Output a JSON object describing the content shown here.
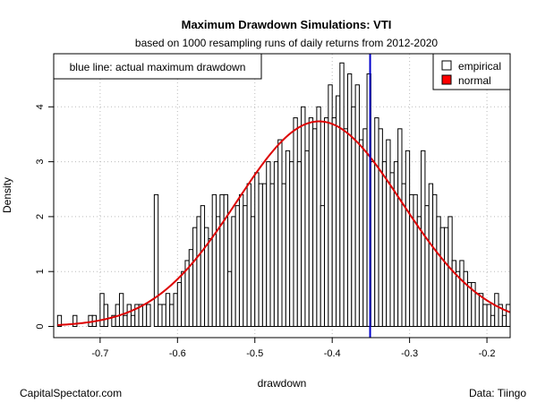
{
  "chart_data": {
    "type": "histogram",
    "title": "Maximum Drawdown Simulations: VTI",
    "subtitle": "based on 1000 resampling runs of daily returns from 2012-2020",
    "xlabel": "drawdown",
    "ylabel": "Density",
    "xlim": [
      -0.76,
      -0.17
    ],
    "ylim": [
      0,
      4.9
    ],
    "x_ticks": [
      -0.7,
      -0.6,
      -0.5,
      -0.4,
      -0.3,
      -0.2
    ],
    "y_ticks": [
      0,
      1,
      2,
      3,
      4
    ],
    "grid": true,
    "bin_width": 0.005,
    "bin_start": -0.755,
    "densities": [
      0.2,
      0.0,
      0.0,
      0.0,
      0.2,
      0.0,
      0.0,
      0.0,
      0.2,
      0.2,
      0.0,
      0.6,
      0.4,
      0.0,
      0.2,
      0.4,
      0.6,
      0.2,
      0.4,
      0.2,
      0.4,
      0.4,
      0.4,
      0.4,
      0.0,
      2.4,
      0.4,
      0.4,
      0.6,
      0.4,
      0.6,
      0.8,
      1.0,
      1.2,
      1.4,
      1.8,
      2.0,
      2.2,
      1.8,
      1.6,
      2.4,
      2.0,
      2.4,
      2.4,
      1.0,
      2.0,
      2.2,
      2.4,
      2.2,
      2.6,
      2.0,
      2.8,
      2.6,
      2.6,
      3.0,
      2.6,
      3.0,
      3.4,
      2.6,
      3.2,
      3.0,
      3.8,
      3.0,
      4.0,
      3.2,
      3.8,
      3.6,
      4.0,
      2.2,
      3.8,
      4.4,
      3.8,
      4.2,
      4.8,
      3.6,
      4.6,
      4.0,
      4.4,
      3.4,
      3.6,
      4.6,
      3.0,
      3.8,
      3.6,
      3.0,
      3.4,
      2.8,
      3.0,
      3.6,
      2.6,
      3.2,
      2.4,
      2.4,
      2.0,
      3.2,
      2.2,
      2.6,
      2.4,
      2.0,
      1.8,
      1.8,
      2.0,
      1.2,
      1.0,
      1.2,
      1.0,
      0.8,
      0.8,
      0.6,
      0.6,
      0.4,
      0.4,
      0.2,
      0.6,
      0.4,
      0.2,
      0.4
    ],
    "normal_curve": {
      "mean": -0.417,
      "sd": 0.1068
    },
    "actual_max_drawdown": -0.351,
    "annotation": "blue line: actual maximum drawdown",
    "legend": {
      "position": "top-right",
      "items": [
        {
          "label": "empirical",
          "color": "#ffffff"
        },
        {
          "label": "normal",
          "color": "#ff0000"
        }
      ]
    },
    "colors": {
      "bars": "#ffffff",
      "bar_stroke": "#000000",
      "normal_line": "#dd0000",
      "actual_line": "#0000cc",
      "grid": "#bbbbbb"
    }
  },
  "footer": {
    "left": "CapitalSpectator.com",
    "right": "Data: Tiingo"
  }
}
